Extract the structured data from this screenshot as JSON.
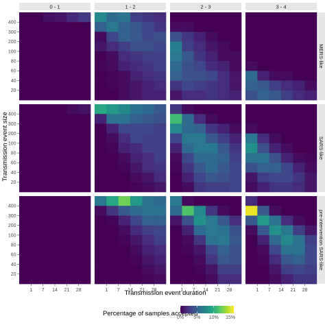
{
  "chart_data": {
    "type": "heatmap",
    "col_facets": [
      "0 - 1",
      "1 - 2",
      "2 - 3",
      "3 - 4"
    ],
    "row_facets": [
      "MERS-like",
      "SARS-like",
      "pre-intervention SARS-like"
    ],
    "x_ticks": [
      "1",
      "7",
      "14",
      "21",
      "28"
    ],
    "y_ticks": [
      "20",
      "40",
      "60",
      "80",
      "100",
      "200",
      "300",
      "400"
    ],
    "xlabel": "Transmission event duration",
    "ylabel": "Transmission event size",
    "legend": {
      "title": "Percentage of samples accepted",
      "ticks": [
        "0%",
        "5%",
        "10%",
        "15%"
      ],
      "tick_values": [
        0,
        5,
        10,
        15
      ],
      "range": [
        0,
        16
      ]
    },
    "colorscale": "viridis",
    "values_note": "values in percent; panels[row][col], rows ordered top (400) to bottom (20), columns x = 1..28",
    "panels": [
      [
        [
          [
            0.0,
            0.0,
            0.6,
            1.0,
            1.9,
            2.8
          ],
          [
            0.0,
            0.0,
            0.0,
            0.0,
            0.0,
            0.0
          ],
          [
            0.0,
            0.0,
            0.0,
            0.0,
            0.0,
            0.0
          ],
          [
            0.0,
            0.0,
            0.0,
            0.0,
            0.0,
            0.0
          ],
          [
            0.0,
            0.0,
            0.0,
            0.0,
            0.0,
            0.0
          ],
          [
            0.0,
            0.0,
            0.0,
            0.0,
            0.0,
            0.0
          ],
          [
            0.0,
            0.0,
            0.0,
            0.0,
            0.0,
            0.0
          ],
          [
            0.0,
            0.0,
            0.0,
            0.0,
            0.0,
            0.0
          ],
          [
            0.0,
            0.0,
            0.0,
            0.0,
            0.0,
            0.0
          ]
        ],
        [
          [
            7.5,
            5.5,
            6.0,
            3.0,
            2.5,
            2.0
          ],
          [
            5.0,
            6.5,
            5.0,
            4.5,
            3.5,
            2.5
          ],
          [
            0.5,
            3.5,
            5.0,
            4.5,
            3.5,
            4.0
          ],
          [
            1.0,
            2.0,
            3.0,
            4.0,
            4.0,
            3.5
          ],
          [
            0.0,
            0.5,
            2.0,
            2.5,
            3.0,
            3.0
          ],
          [
            0.2,
            0.5,
            1.5,
            2.0,
            2.5,
            3.0
          ],
          [
            0.0,
            0.2,
            0.5,
            1.5,
            2.0,
            2.5
          ],
          [
            0.0,
            0.2,
            0.5,
            1.0,
            1.5,
            2.0
          ],
          [
            0.0,
            0.0,
            0.5,
            1.0,
            1.5,
            1.5
          ]
        ],
        [
          [
            0.0,
            0.0,
            0.0,
            0.0,
            0.0,
            0.0
          ],
          [
            0.5,
            0.5,
            0.0,
            0.0,
            0.0,
            0.0
          ],
          [
            4.0,
            2.5,
            1.5,
            0.5,
            0.0,
            0.0
          ],
          [
            7.0,
            3.0,
            2.0,
            1.0,
            0.5,
            0.0
          ],
          [
            6.5,
            4.5,
            2.5,
            1.5,
            0.5,
            0.5
          ],
          [
            5.5,
            4.0,
            3.5,
            2.0,
            1.5,
            0.5
          ],
          [
            5.0,
            4.0,
            4.0,
            3.5,
            2.0,
            1.0
          ],
          [
            2.5,
            3.5,
            3.0,
            2.5,
            2.0,
            1.0
          ],
          [
            1.0,
            2.0,
            2.0,
            2.5,
            2.0,
            1.5
          ]
        ],
        [
          [
            0.0,
            0.0,
            0.0,
            0.0,
            0.0,
            0.0
          ],
          [
            0.0,
            0.0,
            0.0,
            0.0,
            0.0,
            0.0
          ],
          [
            0.0,
            0.0,
            0.0,
            0.0,
            0.0,
            0.0
          ],
          [
            0.0,
            0.0,
            0.0,
            0.0,
            0.0,
            0.0
          ],
          [
            0.0,
            0.0,
            0.0,
            0.0,
            0.0,
            0.0
          ],
          [
            0.5,
            0.0,
            0.0,
            0.0,
            0.0,
            0.0
          ],
          [
            5.5,
            1.5,
            0.5,
            0.5,
            0.0,
            0.0
          ],
          [
            5.0,
            4.5,
            3.0,
            2.0,
            1.5,
            0.5
          ],
          [
            4.0,
            5.0,
            4.5,
            3.0,
            2.0,
            1.5
          ]
        ]
      ],
      [
        [
          [
            0.0,
            0.0,
            0.0,
            0.0,
            0.5,
            0.8
          ],
          [
            0.0,
            0.0,
            0.0,
            0.0,
            0.0,
            0.0
          ],
          [
            0.0,
            0.0,
            0.0,
            0.0,
            0.0,
            0.0
          ],
          [
            0.0,
            0.0,
            0.0,
            0.0,
            0.0,
            0.0
          ],
          [
            0.0,
            0.0,
            0.0,
            0.0,
            0.0,
            0.0
          ],
          [
            0.0,
            0.0,
            0.0,
            0.0,
            0.0,
            0.0
          ],
          [
            0.0,
            0.0,
            0.0,
            0.0,
            0.0,
            0.0
          ],
          [
            0.0,
            0.0,
            0.0,
            0.0,
            0.0,
            0.0
          ],
          [
            0.0,
            0.0,
            0.0,
            0.0,
            0.0,
            0.0
          ]
        ],
        [
          [
            9.5,
            8.5,
            7.5,
            6.0,
            5.5,
            4.5
          ],
          [
            1.5,
            6.0,
            6.0,
            5.0,
            4.5,
            4.0
          ],
          [
            0.0,
            1.5,
            3.5,
            3.5,
            3.5,
            3.0
          ],
          [
            0.0,
            0.5,
            2.0,
            3.5,
            3.0,
            3.0
          ],
          [
            0.0,
            0.2,
            1.5,
            2.0,
            3.0,
            3.0
          ],
          [
            0.0,
            0.0,
            0.5,
            1.5,
            2.0,
            3.0
          ],
          [
            0.0,
            0.0,
            0.2,
            1.0,
            2.0,
            2.5
          ],
          [
            0.0,
            0.0,
            0.0,
            0.5,
            1.0,
            2.0
          ],
          [
            0.0,
            0.0,
            0.0,
            0.2,
            0.5,
            1.0
          ]
        ],
        [
          [
            2.5,
            0.5,
            0.0,
            0.0,
            0.0,
            0.0
          ],
          [
            11.0,
            5.5,
            2.0,
            0.5,
            0.0,
            0.0
          ],
          [
            7.5,
            5.5,
            5.0,
            2.5,
            1.5,
            0.5
          ],
          [
            3.5,
            6.5,
            6.5,
            4.5,
            3.0,
            1.5
          ],
          [
            1.5,
            5.5,
            6.5,
            6.5,
            4.5,
            2.5
          ],
          [
            0.5,
            3.5,
            5.5,
            5.5,
            5.0,
            3.0
          ],
          [
            0.2,
            2.5,
            4.5,
            5.5,
            4.5,
            3.5
          ],
          [
            0.0,
            1.5,
            3.5,
            4.5,
            4.0,
            3.5
          ],
          [
            0.0,
            0.5,
            2.5,
            3.0,
            3.0,
            3.5
          ]
        ],
        [
          [
            0.0,
            0.0,
            0.0,
            0.0,
            0.0,
            0.0
          ],
          [
            0.0,
            0.0,
            0.0,
            0.0,
            0.0,
            0.0
          ],
          [
            0.5,
            0.0,
            0.0,
            0.0,
            0.0,
            0.0
          ],
          [
            6.5,
            2.0,
            0.5,
            0.0,
            0.0,
            0.0
          ],
          [
            8.0,
            4.0,
            1.5,
            0.5,
            0.0,
            0.0
          ],
          [
            6.0,
            6.0,
            4.0,
            1.5,
            0.5,
            0.2
          ],
          [
            4.0,
            5.0,
            5.0,
            3.5,
            1.5,
            0.5
          ],
          [
            1.0,
            3.0,
            3.5,
            3.5,
            2.5,
            1.0
          ],
          [
            0.5,
            1.5,
            2.5,
            2.5,
            2.0,
            1.0
          ]
        ]
      ],
      [
        [
          [
            0.0,
            0.0,
            0.0,
            0.0,
            0.0,
            0.0
          ],
          [
            0.0,
            0.0,
            0.0,
            0.0,
            0.0,
            0.0
          ],
          [
            0.0,
            0.0,
            0.0,
            0.0,
            0.0,
            0.0
          ],
          [
            0.0,
            0.0,
            0.0,
            0.0,
            0.0,
            0.0
          ],
          [
            0.0,
            0.0,
            0.0,
            0.0,
            0.0,
            0.0
          ],
          [
            0.0,
            0.0,
            0.0,
            0.0,
            0.0,
            0.0
          ],
          [
            0.0,
            0.0,
            0.0,
            0.0,
            0.0,
            0.0
          ],
          [
            0.0,
            0.0,
            0.0,
            0.0,
            0.0,
            0.0
          ],
          [
            0.0,
            0.0,
            0.0,
            0.0,
            0.0,
            0.0
          ]
        ],
        [
          [
            6.5,
            9.5,
            12.5,
            8.5,
            6.0,
            5.5
          ],
          [
            0.5,
            2.5,
            4.5,
            5.5,
            6.0,
            6.0
          ],
          [
            0.0,
            0.2,
            1.5,
            3.5,
            5.0,
            5.0
          ],
          [
            0.0,
            0.0,
            0.5,
            2.0,
            3.0,
            3.5
          ],
          [
            0.0,
            0.0,
            0.2,
            1.0,
            2.0,
            3.0
          ],
          [
            0.0,
            0.0,
            0.0,
            0.5,
            1.5,
            2.0
          ],
          [
            0.0,
            0.0,
            0.0,
            0.2,
            1.0,
            1.5
          ],
          [
            0.0,
            0.0,
            0.0,
            0.0,
            0.5,
            1.0
          ],
          [
            0.0,
            0.0,
            0.0,
            0.0,
            0.2,
            0.5
          ]
        ],
        [
          [
            6.5,
            0.5,
            0.0,
            0.0,
            0.0,
            0.0
          ],
          [
            5.5,
            11.5,
            7.5,
            2.5,
            0.5,
            0.0
          ],
          [
            1.0,
            4.0,
            8.0,
            6.5,
            4.5,
            2.0
          ],
          [
            0.0,
            1.5,
            5.5,
            6.5,
            6.0,
            4.0
          ],
          [
            0.0,
            0.5,
            2.5,
            6.0,
            6.5,
            4.5
          ],
          [
            0.0,
            0.2,
            1.0,
            3.5,
            5.0,
            4.0
          ],
          [
            0.0,
            0.0,
            0.5,
            2.5,
            4.5,
            4.0
          ],
          [
            0.0,
            0.0,
            0.2,
            1.0,
            3.0,
            3.0
          ],
          [
            0.0,
            0.0,
            0.0,
            0.5,
            2.0,
            2.0
          ]
        ],
        [
          [
            2.0,
            0.0,
            0.0,
            0.0,
            0.0,
            0.0
          ],
          [
            15.5,
            4.5,
            0.5,
            0.0,
            0.0,
            0.0
          ],
          [
            4.5,
            8.5,
            6.0,
            2.0,
            0.5,
            0.0
          ],
          [
            0.5,
            4.5,
            8.0,
            6.5,
            3.0,
            1.0
          ],
          [
            0.0,
            1.5,
            5.5,
            7.5,
            6.0,
            3.0
          ],
          [
            0.0,
            0.5,
            3.5,
            6.0,
            6.0,
            3.5
          ],
          [
            0.0,
            0.2,
            2.0,
            4.5,
            5.0,
            3.5
          ],
          [
            0.0,
            0.0,
            1.0,
            3.0,
            3.5,
            3.0
          ],
          [
            0.0,
            0.0,
            0.5,
            1.5,
            2.5,
            2.5
          ]
        ]
      ]
    ]
  }
}
